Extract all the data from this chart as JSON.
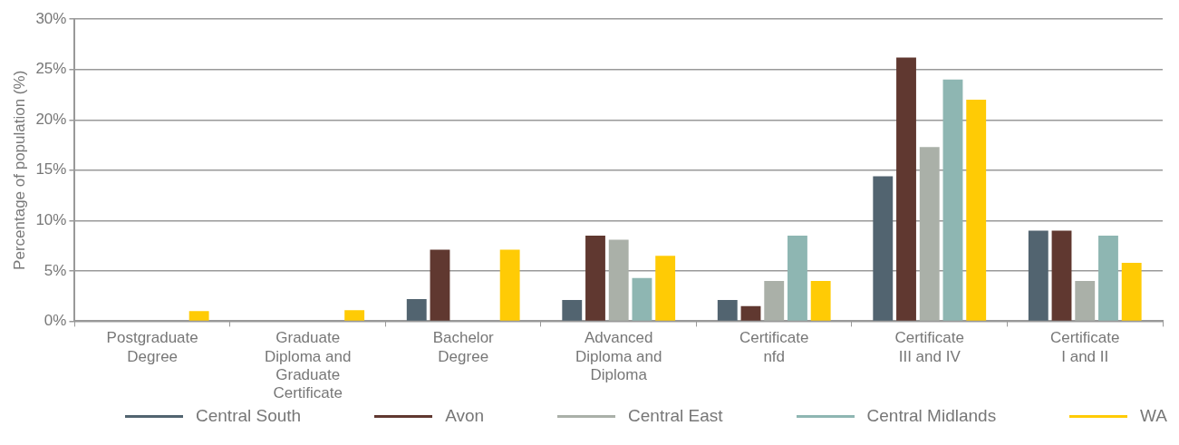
{
  "chart_data": {
    "type": "bar",
    "ylabel": "Percentage of population (%)",
    "categories": [
      "Postgraduate Degree",
      "Graduate Diploma and Graduate Certificate",
      "Bachelor Degree",
      "Advanced Diploma and Diploma",
      "Certificate nfd",
      "Certificate III and IV",
      "Certificate I and II"
    ],
    "series": [
      {
        "name": "Central South",
        "color": "#526470",
        "values": [
          0,
          0,
          2.2,
          2.1,
          2.1,
          14.4,
          9.0
        ]
      },
      {
        "name": "Avon",
        "color": "#603830",
        "values": [
          0,
          0,
          7.1,
          8.5,
          1.5,
          26.2,
          9.0
        ]
      },
      {
        "name": "Central East",
        "color": "#aab0a8",
        "values": [
          0,
          0,
          0,
          8.1,
          4.0,
          17.3,
          4.0
        ]
      },
      {
        "name": "Central Midlands",
        "color": "#8eb6b2",
        "values": [
          0,
          0,
          0,
          4.3,
          8.5,
          24.0,
          8.5
        ]
      },
      {
        "name": "WA",
        "color": "#ffcb05",
        "values": [
          1.0,
          1.1,
          7.1,
          6.5,
          4.0,
          22.0,
          5.8
        ]
      }
    ],
    "ylim": [
      0,
      30
    ],
    "yticks": [
      {
        "value": 0,
        "label": "0%"
      },
      {
        "value": 5,
        "label": "5%"
      },
      {
        "value": 10,
        "label": "10%"
      },
      {
        "value": 15,
        "label": "15%"
      },
      {
        "value": 20,
        "label": "20%"
      },
      {
        "value": 25,
        "label": "25%"
      },
      {
        "value": 30,
        "label": "30%"
      }
    ],
    "grid": "y",
    "legend": "bottom"
  }
}
